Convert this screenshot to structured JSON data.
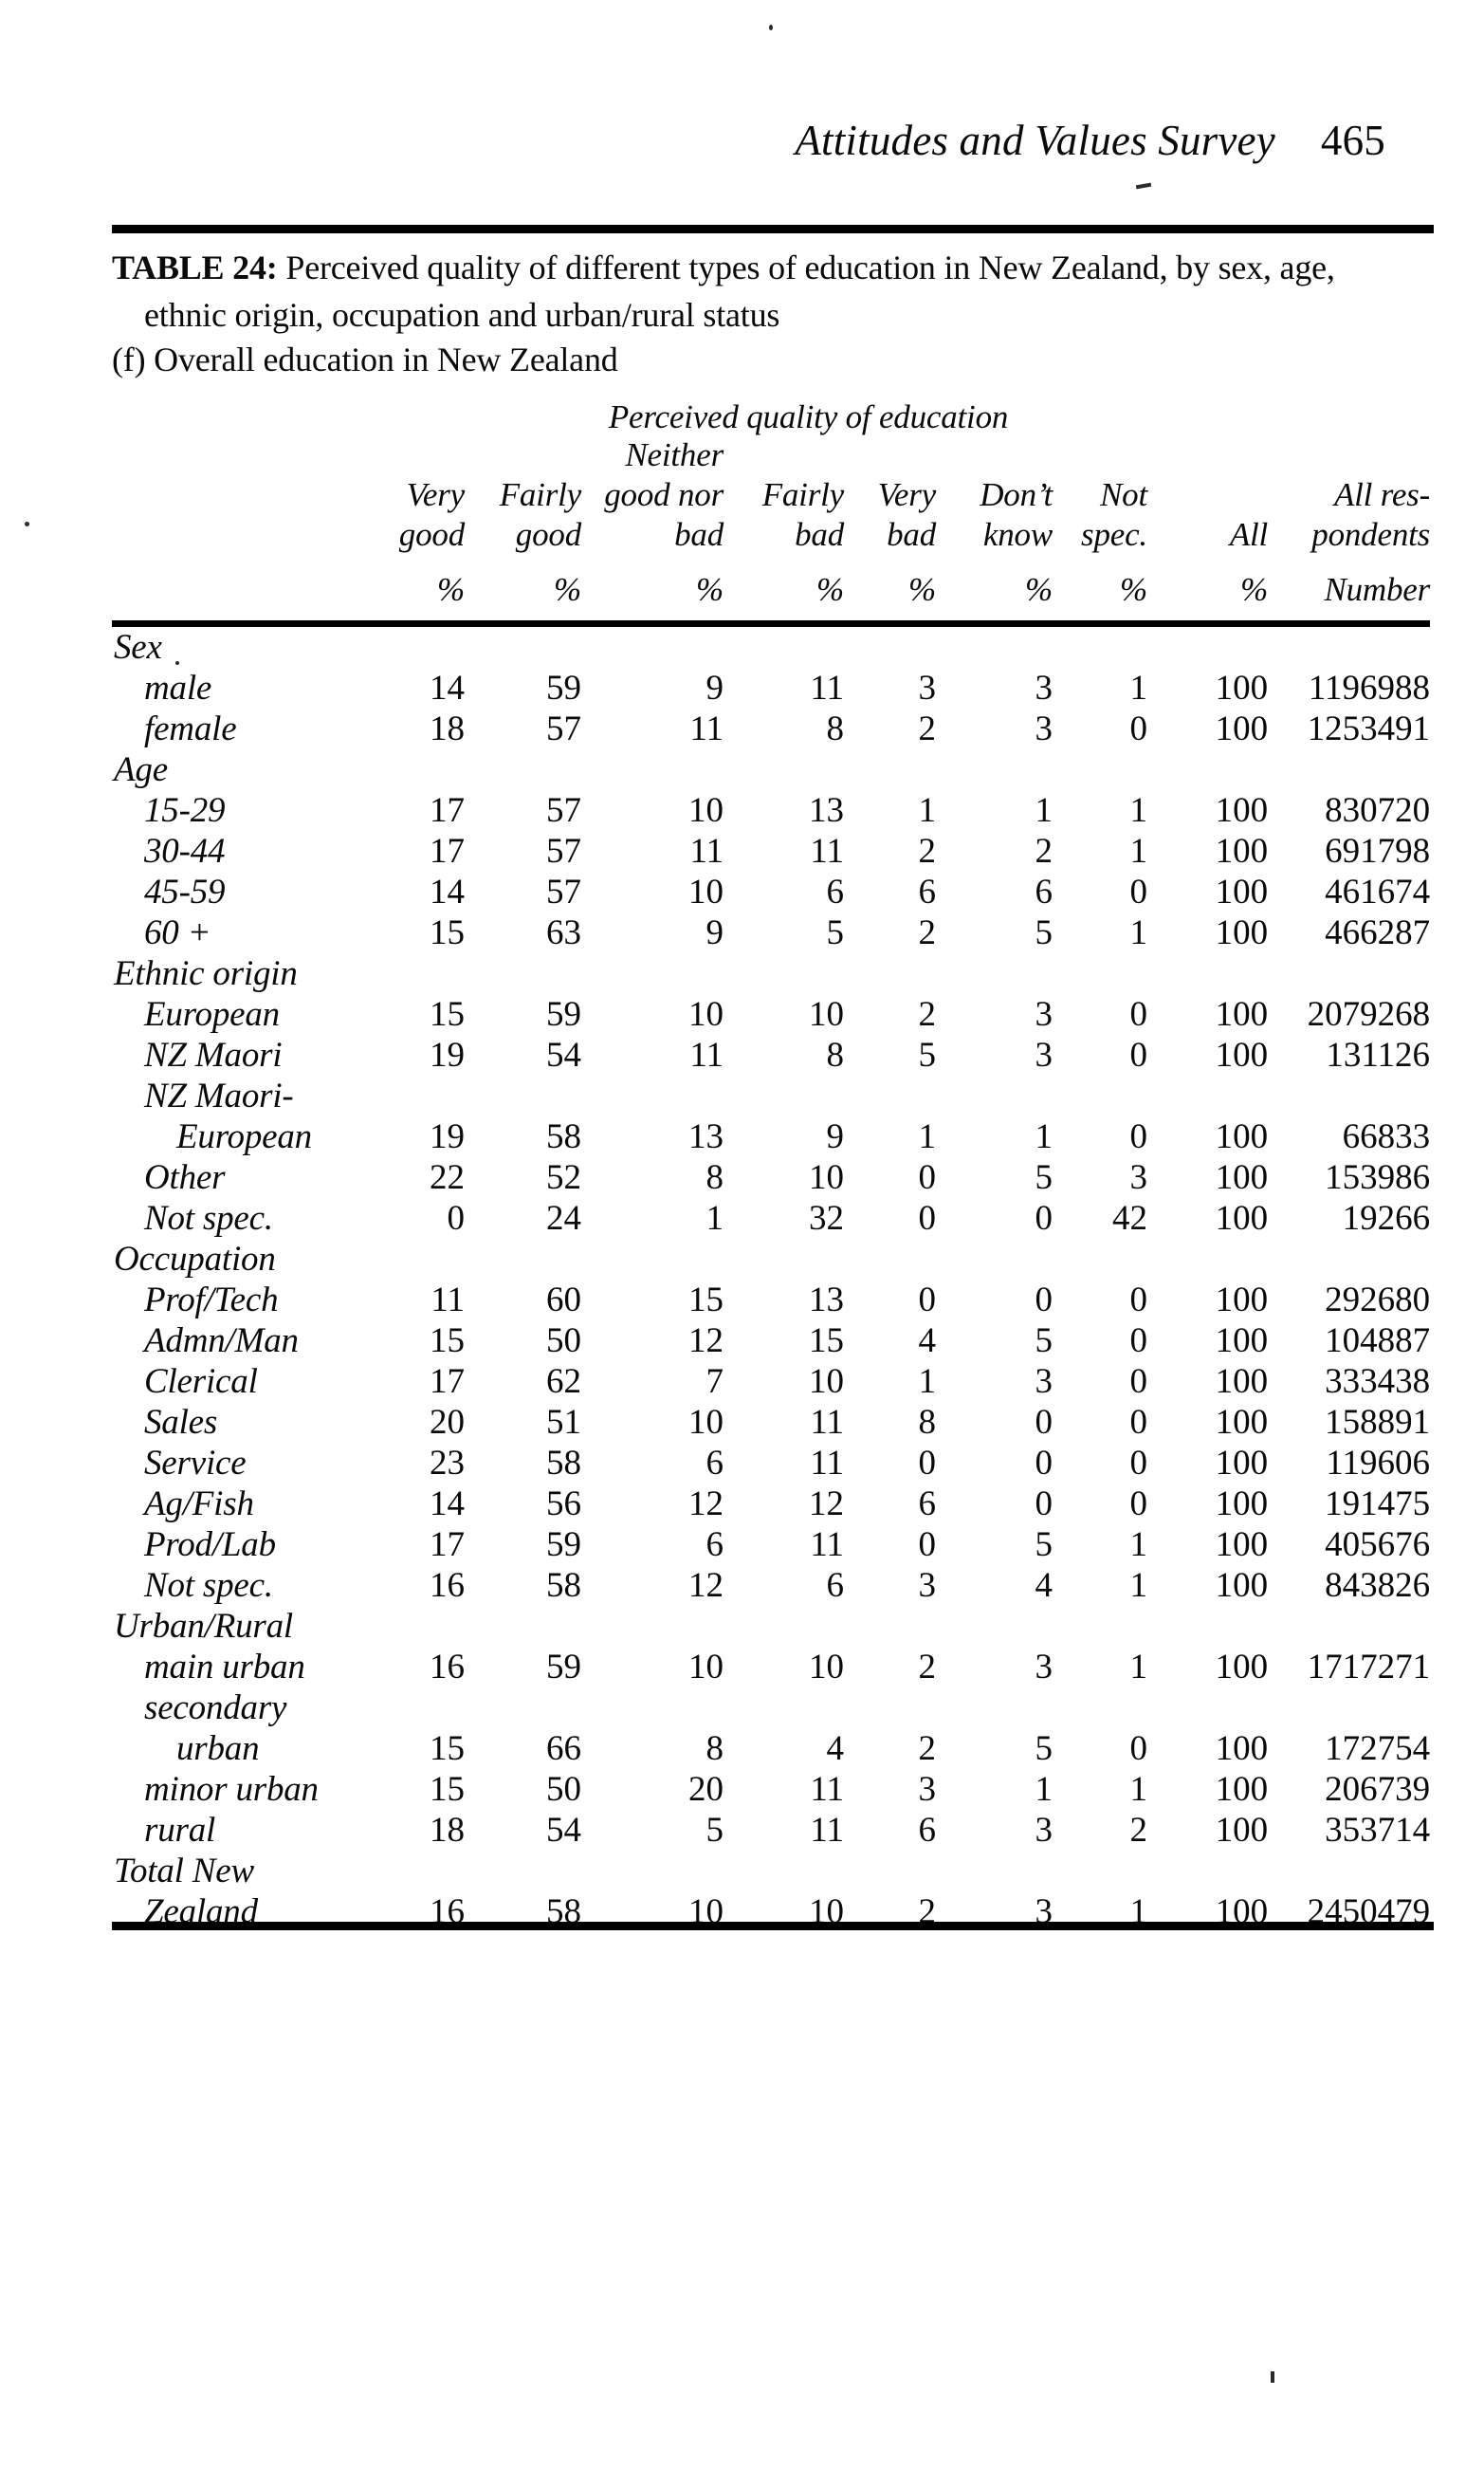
{
  "running_header": {
    "title": "Attitudes and Values Survey",
    "page_number": "465"
  },
  "caption": {
    "bold": "TABLE 24:",
    "line1": "Perceived quality of different types of education in New Zealand, by sex, age,",
    "line2": "ethnic origin, occupation and urban/rural status"
  },
  "subtitle": "(f) Overall education in New Zealand",
  "table": {
    "span_header": "Perceived quality of education",
    "columns": [
      {
        "top": "",
        "h1": "Very",
        "h2": "good",
        "unit": "%"
      },
      {
        "top": "",
        "h1": "Fairly",
        "h2": "good",
        "unit": "%"
      },
      {
        "top": "Neither",
        "h1": "good nor",
        "h2": "bad",
        "unit": "%"
      },
      {
        "top": "",
        "h1": "Fairly",
        "h2": "bad",
        "unit": "%"
      },
      {
        "top": "",
        "h1": "Very",
        "h2": "bad",
        "unit": "%"
      },
      {
        "top": "",
        "h1": "Don’t",
        "h2": "know",
        "unit": "%"
      },
      {
        "top": "",
        "h1": "Not",
        "h2": "spec.",
        "unit": "%"
      },
      {
        "top": "",
        "h1": "",
        "h2": "All",
        "unit": "%"
      },
      {
        "top": "",
        "h1": "All res-",
        "h2": "pondents",
        "unit": "Number"
      }
    ],
    "rows": [
      {
        "type": "group",
        "label": "Sex",
        "values": []
      },
      {
        "type": "item",
        "label": "male",
        "values": [
          "14",
          "59",
          "9",
          "11",
          "3",
          "3",
          "1",
          "100",
          "1196988"
        ]
      },
      {
        "type": "item",
        "label": "female",
        "values": [
          "18",
          "57",
          "11",
          "8",
          "2",
          "3",
          "0",
          "100",
          "1253491"
        ]
      },
      {
        "type": "group",
        "label": "Age",
        "values": []
      },
      {
        "type": "item",
        "label": "15-29",
        "values": [
          "17",
          "57",
          "10",
          "13",
          "1",
          "1",
          "1",
          "100",
          "830720"
        ]
      },
      {
        "type": "item",
        "label": "30-44",
        "values": [
          "17",
          "57",
          "11",
          "11",
          "2",
          "2",
          "1",
          "100",
          "691798"
        ]
      },
      {
        "type": "item",
        "label": "45-59",
        "values": [
          "14",
          "57",
          "10",
          "6",
          "6",
          "6",
          "0",
          "100",
          "461674"
        ]
      },
      {
        "type": "item",
        "label": "60 +",
        "values": [
          "15",
          "63",
          "9",
          "5",
          "2",
          "5",
          "1",
          "100",
          "466287"
        ]
      },
      {
        "type": "group",
        "label": "Ethnic origin",
        "values": []
      },
      {
        "type": "item",
        "label": "European",
        "values": [
          "15",
          "59",
          "10",
          "10",
          "2",
          "3",
          "0",
          "100",
          "2079268"
        ]
      },
      {
        "type": "item",
        "label": "NZ Maori",
        "values": [
          "19",
          "54",
          "11",
          "8",
          "5",
          "3",
          "0",
          "100",
          "131126"
        ]
      },
      {
        "type": "item",
        "label": "NZ Maori-",
        "values": []
      },
      {
        "type": "item2",
        "label": "European",
        "values": [
          "19",
          "58",
          "13",
          "9",
          "1",
          "1",
          "0",
          "100",
          "66833"
        ]
      },
      {
        "type": "item",
        "label": "Other",
        "values": [
          "22",
          "52",
          "8",
          "10",
          "0",
          "5",
          "3",
          "100",
          "153986"
        ]
      },
      {
        "type": "item",
        "label": "Not spec.",
        "values": [
          "0",
          "24",
          "1",
          "32",
          "0",
          "0",
          "42",
          "100",
          "19266"
        ]
      },
      {
        "type": "group",
        "label": "Occupation",
        "values": []
      },
      {
        "type": "item",
        "label": "Prof/Tech",
        "values": [
          "11",
          "60",
          "15",
          "13",
          "0",
          "0",
          "0",
          "100",
          "292680"
        ]
      },
      {
        "type": "item",
        "label": "Admn/Man",
        "values": [
          "15",
          "50",
          "12",
          "15",
          "4",
          "5",
          "0",
          "100",
          "104887"
        ]
      },
      {
        "type": "item",
        "label": "Clerical",
        "values": [
          "17",
          "62",
          "7",
          "10",
          "1",
          "3",
          "0",
          "100",
          "333438"
        ]
      },
      {
        "type": "item",
        "label": "Sales",
        "values": [
          "20",
          "51",
          "10",
          "11",
          "8",
          "0",
          "0",
          "100",
          "158891"
        ]
      },
      {
        "type": "item",
        "label": "Service",
        "values": [
          "23",
          "58",
          "6",
          "11",
          "0",
          "0",
          "0",
          "100",
          "119606"
        ]
      },
      {
        "type": "item",
        "label": "Ag/Fish",
        "values": [
          "14",
          "56",
          "12",
          "12",
          "6",
          "0",
          "0",
          "100",
          "191475"
        ]
      },
      {
        "type": "item",
        "label": "Prod/Lab",
        "values": [
          "17",
          "59",
          "6",
          "11",
          "0",
          "5",
          "1",
          "100",
          "405676"
        ]
      },
      {
        "type": "item",
        "label": "Not spec.",
        "values": [
          "16",
          "58",
          "12",
          "6",
          "3",
          "4",
          "1",
          "100",
          "843826"
        ]
      },
      {
        "type": "group",
        "label": "Urban/Rural",
        "values": []
      },
      {
        "type": "item",
        "label": "main urban",
        "values": [
          "16",
          "59",
          "10",
          "10",
          "2",
          "3",
          "1",
          "100",
          "1717271"
        ]
      },
      {
        "type": "item",
        "label": "secondary",
        "values": []
      },
      {
        "type": "item2",
        "label": "urban",
        "values": [
          "15",
          "66",
          "8",
          "4",
          "2",
          "5",
          "0",
          "100",
          "172754"
        ]
      },
      {
        "type": "item",
        "label": "minor urban",
        "values": [
          "15",
          "50",
          "20",
          "11",
          "3",
          "1",
          "1",
          "100",
          "206739"
        ]
      },
      {
        "type": "item",
        "label": "rural",
        "values": [
          "18",
          "54",
          "5",
          "11",
          "6",
          "3",
          "2",
          "100",
          "353714"
        ]
      },
      {
        "type": "group",
        "label": "Total New",
        "values": []
      },
      {
        "type": "item",
        "label": "Zealand",
        "values": [
          "16",
          "58",
          "10",
          "10",
          "2",
          "3",
          "1",
          "100",
          "2450479"
        ]
      }
    ]
  }
}
